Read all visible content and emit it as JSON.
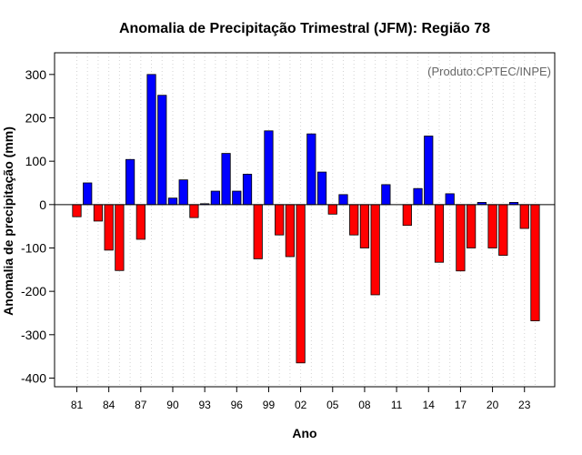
{
  "chart_data": {
    "type": "bar",
    "title": "Anomalia de Precipitação Trimestral (JFM): Região 78",
    "xlabel": "Ano",
    "ylabel": "Anomalia de precipitação (mm)",
    "credit": "(Produto:CPTEC/INPE)",
    "ylim": [
      -420,
      350
    ],
    "yticks": [
      -400,
      -300,
      -200,
      -100,
      0,
      100,
      200,
      300
    ],
    "categories": [
      1981,
      1982,
      1983,
      1984,
      1985,
      1986,
      1987,
      1988,
      1989,
      1990,
      1991,
      1992,
      1993,
      1994,
      1995,
      1996,
      1997,
      1998,
      1999,
      2000,
      2001,
      2002,
      2003,
      2004,
      2005,
      2006,
      2007,
      2008,
      2009,
      2010,
      2011,
      2012,
      2013,
      2014,
      2015,
      2016,
      2017,
      2018,
      2019,
      2020,
      2021,
      2022,
      2023,
      2024
    ],
    "xtick_labels": [
      {
        "year": 1981,
        "label": "81"
      },
      {
        "year": 1984,
        "label": "84"
      },
      {
        "year": 1987,
        "label": "87"
      },
      {
        "year": 1990,
        "label": "90"
      },
      {
        "year": 1993,
        "label": "93"
      },
      {
        "year": 1996,
        "label": "96"
      },
      {
        "year": 1999,
        "label": "99"
      },
      {
        "year": 2002,
        "label": "02"
      },
      {
        "year": 2005,
        "label": "05"
      },
      {
        "year": 2008,
        "label": "08"
      },
      {
        "year": 2011,
        "label": "11"
      },
      {
        "year": 2014,
        "label": "14"
      },
      {
        "year": 2017,
        "label": "17"
      },
      {
        "year": 2020,
        "label": "20"
      },
      {
        "year": 2023,
        "label": "23"
      }
    ],
    "values": [
      -28,
      50,
      -38,
      -105,
      -152,
      104,
      -80,
      300,
      252,
      15,
      57,
      -30,
      2,
      31,
      118,
      31,
      70,
      -125,
      170,
      -70,
      -120,
      -365,
      163,
      75,
      -22,
      23,
      -70,
      -100,
      -208,
      46,
      0,
      -48,
      37,
      158,
      -133,
      25,
      -153,
      -100,
      5,
      -100,
      -117,
      5,
      -55,
      -268
    ],
    "colors": {
      "positive": "#0000ff",
      "negative": "#ff0000",
      "outline": "#000000",
      "grid": "#d3d3d3"
    }
  }
}
